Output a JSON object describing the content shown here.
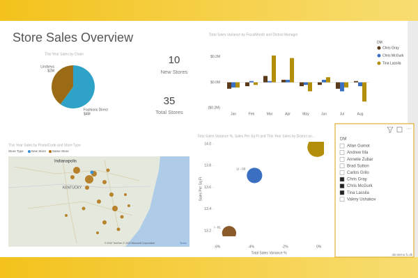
{
  "title": "Store Sales Overview",
  "cards": [
    {
      "value": 10,
      "label": "New Stores"
    },
    {
      "value": 35,
      "label": "Total Stores"
    }
  ],
  "map": {
    "title": "This Year Sales by PostalCode and Store Type",
    "legend_title": "Store Type",
    "legend": [
      {
        "name": "New Store",
        "color": "#3a8fd6"
      },
      {
        "name": "Same Store",
        "color": "#b0700e"
      }
    ],
    "places": [
      "Indianapolis",
      "KENTUCKY"
    ],
    "attribution": "© 2022 TomTom © 2022 Microsoft Corporation",
    "terms": "Terms"
  },
  "slicer": {
    "title": "DM",
    "items": [
      {
        "label": "Allan Guinot",
        "selected": false
      },
      {
        "label": "Andrew Ma",
        "selected": false
      },
      {
        "label": "Annelie Zubar",
        "selected": false
      },
      {
        "label": "Brad Sutton",
        "selected": false
      },
      {
        "label": "Carlos Grilo",
        "selected": false
      },
      {
        "label": "Chris Gray",
        "selected": true
      },
      {
        "label": "Chris McGurk",
        "selected": true
      },
      {
        "label": "Tina Lassila",
        "selected": true
      },
      {
        "label": "Valery Ushakov",
        "selected": false
      }
    ]
  },
  "footer": "obi-demo.fc.dk",
  "chart_data": [
    {
      "type": "pie",
      "title": "This Year Sales by Chain",
      "categories": [
        "Lindseys",
        "Fashions Direct"
      ],
      "values": [
        2400000,
        3600000
      ],
      "value_labels": [
        "$2M",
        "$4M"
      ],
      "colors": [
        "#9a6a14",
        "#2ea3c7"
      ]
    },
    {
      "type": "bar",
      "title": "Total Sales Variance by FiscalMonth and District Manager",
      "categories": [
        "Jan",
        "Feb",
        "Mar",
        "Apr",
        "May",
        "Jun",
        "Jul",
        "Aug"
      ],
      "legend_title": "DM",
      "series": [
        {
          "name": "Chris Gray",
          "color": "#5b3b1c",
          "values": [
            -0.05,
            -0.03,
            0.05,
            0.02,
            -0.03,
            -0.02,
            -0.05,
            0.01
          ]
        },
        {
          "name": "Chris McGurk",
          "color": "#3b6fc2",
          "values": [
            -0.04,
            0.01,
            0.01,
            0.02,
            -0.02,
            0.02,
            -0.07,
            -0.03
          ]
        },
        {
          "name": "Tina Lassila",
          "color": "#b38e0a",
          "values": [
            -0.04,
            -0.02,
            0.21,
            0.19,
            -0.07,
            0.04,
            -0.04,
            -0.15
          ]
        }
      ],
      "ylim": [
        -0.22,
        0.22
      ],
      "yticks": [
        {
          "value": -0.2,
          "label": "($0.2M)"
        },
        {
          "value": 0,
          "label": "$0.0M"
        },
        {
          "value": 0.2,
          "label": "$0.2M"
        }
      ],
      "grid": false
    },
    {
      "type": "scatter",
      "title": "Total Sales Variance %, Sales Per Sq Ft and This Year Sales by District an...",
      "xlabel": "Total Sales Variance %",
      "ylabel": "Sales Per Sq Ft",
      "point_labels": [
        "FD - 01",
        "LI - 03",
        "LI - 01"
      ],
      "x": [
        -0.1,
        -3.8,
        -5.3
      ],
      "values": [
        13.97,
        13.71,
        13.18
      ],
      "sizes": [
        4.0,
        2.5,
        2.1
      ],
      "colors": [
        "#b38e0a",
        "#3b6fc2",
        "#8b5a2b"
      ],
      "xlim": [
        -6.2,
        0.3
      ],
      "xticks": [
        {
          "value": -6,
          "label": "-6%"
        },
        {
          "value": -4,
          "label": "-4%"
        },
        {
          "value": -2,
          "label": "-2%"
        },
        {
          "value": 0,
          "label": "0%"
        }
      ],
      "ylim": [
        13.15,
        14.02
      ],
      "yticks": [
        {
          "value": 13.2,
          "label": "13.2"
        },
        {
          "value": 13.4,
          "label": "13.4"
        },
        {
          "value": 13.6,
          "label": "13.6"
        },
        {
          "value": 13.8,
          "label": "13.8"
        },
        {
          "value": 14.0,
          "label": "14.0"
        }
      ]
    }
  ]
}
